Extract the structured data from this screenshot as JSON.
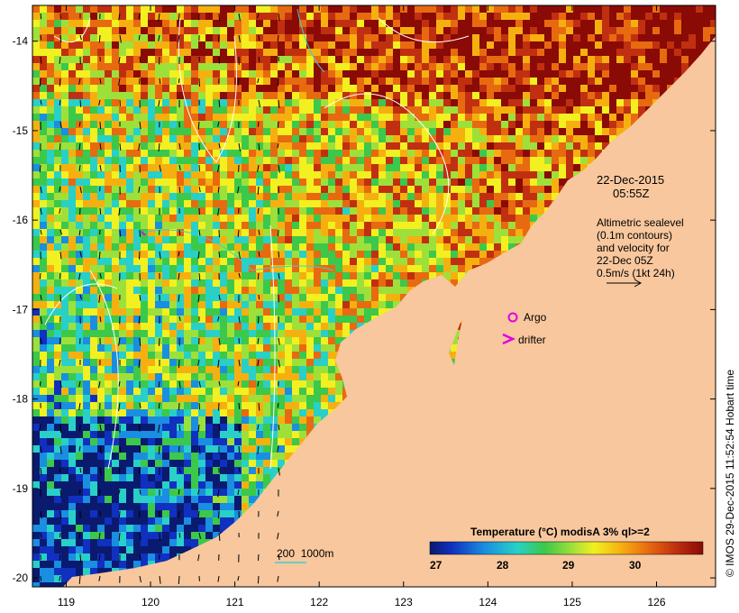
{
  "map": {
    "x_ticks": [
      "119",
      "120",
      "121",
      "122",
      "123",
      "124",
      "125",
      "126"
    ],
    "y_ticks": [
      "-14",
      "-15",
      "-16",
      "-17",
      "-18",
      "-19",
      "-20"
    ],
    "lon_range": [
      118.6,
      126.7
    ],
    "lat_range": [
      -20.1,
      -13.6
    ]
  },
  "annotations": {
    "date": "22-Dec-2015",
    "time": "05:55Z",
    "alt_line1": "Altimetric sealevel",
    "alt_line2": "(0.1m contours)",
    "alt_line3": "and velocity for",
    "alt_line4": "22-Dec 05Z",
    "alt_line5": "0.5m/s (1kt 24h)",
    "argo_label": "Argo",
    "drifter_label": "drifter",
    "scale_label": "200  1000m",
    "credit": "© IMOS 29-Dec-2015 11:52:54 Hobart time"
  },
  "colorbar": {
    "title": "Temperature (°C) modisA 3% ql>=2",
    "ticks": [
      "27",
      "28",
      "29",
      "30"
    ],
    "range": [
      26.9,
      30.9
    ]
  },
  "colors": {
    "land": "#f8c79d",
    "argo": "#e000e0",
    "contour": "#ffffff",
    "bathy": "#38d0d0"
  }
}
